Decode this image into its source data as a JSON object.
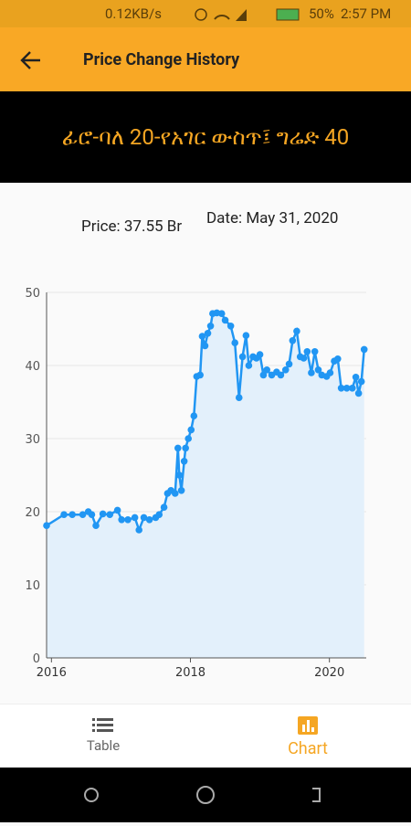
{
  "status_bar": {
    "speed": "0.12KB/s",
    "battery": "50%",
    "time": "2:57 PM"
  },
  "app_bar": {
    "title": "Price Change History"
  },
  "banner": {
    "title": "ፊሮ-ባለ 20-የአገር ውስጥ፤ ግሬድ 40"
  },
  "selection": {
    "price": "Price: 37.55 Br",
    "date": "Date: May 31, 2020"
  },
  "chart_data": {
    "type": "line",
    "color": "#2196f3",
    "fill": "#e3f0fb",
    "grid": true,
    "xlim": [
      2015.93,
      2020.53
    ],
    "ylim": [
      0,
      50
    ],
    "xticks": [
      2016,
      2018,
      2020
    ],
    "yticks": [
      0,
      10,
      20,
      30,
      40,
      50
    ],
    "x": [
      2015.93,
      2016.18,
      2016.3,
      2016.45,
      2016.53,
      2016.58,
      2016.64,
      2016.74,
      2016.84,
      2016.95,
      2017.01,
      2017.1,
      2017.2,
      2017.26,
      2017.33,
      2017.41,
      2017.5,
      2017.55,
      2017.62,
      2017.67,
      2017.72,
      2017.78,
      2017.82,
      2017.84,
      2017.87,
      2017.91,
      2017.93,
      2017.97,
      2018.01,
      2018.05,
      2018.09,
      2018.14,
      2018.17,
      2018.21,
      2018.25,
      2018.29,
      2018.32,
      2018.38,
      2018.45,
      2018.5,
      2018.58,
      2018.64,
      2018.7,
      2018.75,
      2018.8,
      2018.84,
      2018.9,
      2018.95,
      2019.0,
      2019.05,
      2019.1,
      2019.17,
      2019.24,
      2019.3,
      2019.37,
      2019.42,
      2019.47,
      2019.53,
      2019.58,
      2019.63,
      2019.68,
      2019.74,
      2019.79,
      2019.84,
      2019.89,
      2019.96,
      2020.01,
      2020.07,
      2020.12,
      2020.17,
      2020.25,
      2020.33,
      2020.38,
      2020.42,
      2020.46,
      2020.5
    ],
    "values": [
      18.1,
      19.6,
      19.6,
      19.6,
      20,
      19.6,
      18.1,
      19.7,
      19.6,
      20.2,
      18.9,
      18.9,
      19.2,
      17.5,
      19.2,
      18.9,
      19.2,
      19.6,
      20.6,
      22.5,
      22.9,
      22.5,
      28.7,
      25,
      22.9,
      26.9,
      28.7,
      30,
      31.2,
      33.1,
      38.5,
      38.7,
      44,
      42.7,
      44.4,
      45.4,
      47.1,
      47.2,
      47.1,
      46.2,
      45.4,
      43.1,
      35.6,
      41.2,
      44.1,
      40,
      41.2,
      41,
      41.5,
      38.7,
      39.4,
      38.7,
      39.1,
      38.7,
      39.4,
      40.2,
      43.4,
      44.7,
      41.2,
      41,
      41.9,
      39,
      41.9,
      39.4,
      38.7,
      38.5,
      39,
      40.6,
      40.9,
      36.9,
      36.9,
      36.9,
      38.4,
      36.2,
      37.8,
      42.2
    ]
  },
  "bottom_nav": {
    "table": "Table",
    "chart": "Chart"
  }
}
